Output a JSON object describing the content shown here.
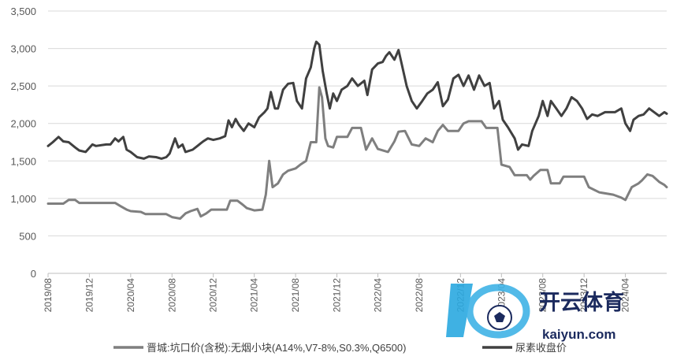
{
  "chart_data": {
    "type": "line",
    "ylim": [
      0,
      3500
    ],
    "yticks": [
      0,
      500,
      1000,
      1500,
      2000,
      2500,
      3000,
      3500
    ],
    "ytick_labels": [
      "0",
      "500",
      "1,000",
      "1,500",
      "2,000",
      "2,500",
      "3,000",
      "3,500"
    ],
    "x_range": [
      "2019-08-01",
      "2024-08-01"
    ],
    "xtick_labels": [
      "2019/08",
      "2019/12",
      "2020/04",
      "2020/08",
      "2020/12",
      "2021/04",
      "2021/08",
      "2021/12",
      "2022/04",
      "2022/08",
      "2022/12",
      "2023/04",
      "2023/08",
      "2023/12",
      "2024/04"
    ],
    "grid": "horizontal",
    "legend_position": "bottom",
    "series": [
      {
        "name": "晋城:坑口价(含税):无烟小块(A14%,V7-8%,S0.3%,Q6500)",
        "color": "#7f7f7f",
        "points": [
          [
            "2019-08-01",
            930
          ],
          [
            "2019-09-15",
            930
          ],
          [
            "2019-10-01",
            980
          ],
          [
            "2019-10-20",
            980
          ],
          [
            "2019-11-01",
            940
          ],
          [
            "2020-02-15",
            940
          ],
          [
            "2020-03-01",
            900
          ],
          [
            "2020-03-20",
            850
          ],
          [
            "2020-04-01",
            830
          ],
          [
            "2020-05-01",
            820
          ],
          [
            "2020-05-15",
            790
          ],
          [
            "2020-07-15",
            790
          ],
          [
            "2020-08-01",
            750
          ],
          [
            "2020-08-25",
            730
          ],
          [
            "2020-09-10",
            800
          ],
          [
            "2020-09-25",
            830
          ],
          [
            "2020-10-15",
            860
          ],
          [
            "2020-10-25",
            760
          ],
          [
            "2020-11-10",
            800
          ],
          [
            "2020-11-25",
            850
          ],
          [
            "2021-01-10",
            850
          ],
          [
            "2021-01-20",
            970
          ],
          [
            "2021-02-10",
            970
          ],
          [
            "2021-02-25",
            920
          ],
          [
            "2021-03-10",
            870
          ],
          [
            "2021-04-01",
            840
          ],
          [
            "2021-04-25",
            850
          ],
          [
            "2021-05-05",
            1050
          ],
          [
            "2021-05-15",
            1500
          ],
          [
            "2021-05-25",
            1150
          ],
          [
            "2021-06-10",
            1200
          ],
          [
            "2021-06-25",
            1320
          ],
          [
            "2021-07-10",
            1370
          ],
          [
            "2021-08-01",
            1400
          ],
          [
            "2021-08-15",
            1450
          ],
          [
            "2021-09-01",
            1500
          ],
          [
            "2021-09-15",
            1750
          ],
          [
            "2021-10-01",
            1750
          ],
          [
            "2021-10-10",
            2480
          ],
          [
            "2021-10-18",
            2350
          ],
          [
            "2021-10-28",
            1800
          ],
          [
            "2021-11-05",
            1700
          ],
          [
            "2021-11-20",
            1680
          ],
          [
            "2021-12-01",
            1820
          ],
          [
            "2022-01-01",
            1820
          ],
          [
            "2022-01-15",
            1940
          ],
          [
            "2022-02-10",
            1940
          ],
          [
            "2022-02-25",
            1650
          ],
          [
            "2022-03-15",
            1800
          ],
          [
            "2022-04-01",
            1660
          ],
          [
            "2022-05-01",
            1620
          ],
          [
            "2022-05-20",
            1760
          ],
          [
            "2022-06-01",
            1890
          ],
          [
            "2022-06-20",
            1900
          ],
          [
            "2022-07-10",
            1720
          ],
          [
            "2022-08-01",
            1700
          ],
          [
            "2022-08-20",
            1800
          ],
          [
            "2022-09-10",
            1750
          ],
          [
            "2022-09-25",
            1900
          ],
          [
            "2022-10-10",
            1980
          ],
          [
            "2022-10-25",
            1900
          ],
          [
            "2022-11-25",
            1900
          ],
          [
            "2022-12-10",
            2000
          ],
          [
            "2022-12-25",
            2030
          ],
          [
            "2023-02-01",
            2030
          ],
          [
            "2023-02-15",
            1940
          ],
          [
            "2023-03-20",
            1940
          ],
          [
            "2023-04-01",
            1450
          ],
          [
            "2023-04-25",
            1420
          ],
          [
            "2023-05-10",
            1310
          ],
          [
            "2023-06-15",
            1310
          ],
          [
            "2023-06-25",
            1250
          ],
          [
            "2023-07-05",
            1300
          ],
          [
            "2023-07-25",
            1380
          ],
          [
            "2023-08-15",
            1380
          ],
          [
            "2023-08-25",
            1200
          ],
          [
            "2023-09-20",
            1200
          ],
          [
            "2023-10-01",
            1290
          ],
          [
            "2023-12-01",
            1290
          ],
          [
            "2023-12-15",
            1150
          ],
          [
            "2024-01-15",
            1080
          ],
          [
            "2024-02-25",
            1050
          ],
          [
            "2024-03-20",
            1010
          ],
          [
            "2024-04-01",
            980
          ],
          [
            "2024-04-20",
            1150
          ],
          [
            "2024-05-10",
            1200
          ],
          [
            "2024-05-20",
            1240
          ],
          [
            "2024-06-05",
            1320
          ],
          [
            "2024-06-20",
            1300
          ],
          [
            "2024-07-10",
            1220
          ],
          [
            "2024-07-25",
            1180
          ],
          [
            "2024-08-01",
            1150
          ]
        ]
      },
      {
        "name": "尿素收盘价",
        "color": "#404040",
        "points": [
          [
            "2019-08-01",
            1700
          ],
          [
            "2019-08-15",
            1750
          ],
          [
            "2019-09-01",
            1820
          ],
          [
            "2019-09-15",
            1760
          ],
          [
            "2019-10-01",
            1750
          ],
          [
            "2019-10-20",
            1680
          ],
          [
            "2019-11-01",
            1640
          ],
          [
            "2019-11-20",
            1620
          ],
          [
            "2019-12-10",
            1720
          ],
          [
            "2019-12-20",
            1700
          ],
          [
            "2020-01-20",
            1720
          ],
          [
            "2020-02-01",
            1720
          ],
          [
            "2020-02-15",
            1800
          ],
          [
            "2020-02-25",
            1760
          ],
          [
            "2020-03-10",
            1820
          ],
          [
            "2020-03-20",
            1650
          ],
          [
            "2020-04-01",
            1620
          ],
          [
            "2020-04-20",
            1550
          ],
          [
            "2020-05-10",
            1530
          ],
          [
            "2020-05-25",
            1560
          ],
          [
            "2020-06-15",
            1550
          ],
          [
            "2020-07-01",
            1530
          ],
          [
            "2020-07-15",
            1550
          ],
          [
            "2020-07-25",
            1600
          ],
          [
            "2020-08-10",
            1800
          ],
          [
            "2020-08-20",
            1680
          ],
          [
            "2020-09-01",
            1720
          ],
          [
            "2020-09-10",
            1620
          ],
          [
            "2020-10-01",
            1650
          ],
          [
            "2020-10-15",
            1700
          ],
          [
            "2020-11-01",
            1760
          ],
          [
            "2020-11-15",
            1800
          ],
          [
            "2020-12-01",
            1780
          ],
          [
            "2020-12-20",
            1800
          ],
          [
            "2021-01-05",
            1830
          ],
          [
            "2021-01-15",
            2040
          ],
          [
            "2021-01-25",
            1950
          ],
          [
            "2021-02-05",
            2060
          ],
          [
            "2021-02-15",
            1980
          ],
          [
            "2021-03-01",
            1900
          ],
          [
            "2021-03-15",
            2000
          ],
          [
            "2021-04-01",
            1950
          ],
          [
            "2021-04-15",
            2080
          ],
          [
            "2021-05-01",
            2150
          ],
          [
            "2021-05-10",
            2200
          ],
          [
            "2021-05-20",
            2420
          ],
          [
            "2021-06-01",
            2200
          ],
          [
            "2021-06-10",
            2200
          ],
          [
            "2021-06-25",
            2450
          ],
          [
            "2021-07-10",
            2530
          ],
          [
            "2021-07-25",
            2540
          ],
          [
            "2021-08-05",
            2300
          ],
          [
            "2021-08-20",
            2200
          ],
          [
            "2021-09-01",
            2600
          ],
          [
            "2021-09-15",
            2750
          ],
          [
            "2021-09-25",
            3000
          ],
          [
            "2021-10-01",
            3090
          ],
          [
            "2021-10-10",
            3050
          ],
          [
            "2021-10-20",
            2700
          ],
          [
            "2021-11-01",
            2400
          ],
          [
            "2021-11-10",
            2200
          ],
          [
            "2021-11-20",
            2400
          ],
          [
            "2021-12-01",
            2300
          ],
          [
            "2021-12-15",
            2450
          ],
          [
            "2022-01-01",
            2500
          ],
          [
            "2022-01-15",
            2600
          ],
          [
            "2022-02-01",
            2500
          ],
          [
            "2022-02-20",
            2570
          ],
          [
            "2022-03-01",
            2380
          ],
          [
            "2022-03-15",
            2720
          ],
          [
            "2022-04-01",
            2800
          ],
          [
            "2022-04-15",
            2820
          ],
          [
            "2022-04-25",
            2900
          ],
          [
            "2022-05-05",
            2950
          ],
          [
            "2022-05-20",
            2850
          ],
          [
            "2022-06-01",
            2980
          ],
          [
            "2022-06-10",
            2800
          ],
          [
            "2022-06-25",
            2500
          ],
          [
            "2022-07-10",
            2300
          ],
          [
            "2022-07-25",
            2200
          ],
          [
            "2022-08-10",
            2300
          ],
          [
            "2022-08-25",
            2400
          ],
          [
            "2022-09-10",
            2450
          ],
          [
            "2022-09-25",
            2550
          ],
          [
            "2022-10-10",
            2230
          ],
          [
            "2022-10-25",
            2320
          ],
          [
            "2022-11-10",
            2600
          ],
          [
            "2022-11-25",
            2650
          ],
          [
            "2022-12-10",
            2500
          ],
          [
            "2022-12-25",
            2640
          ],
          [
            "2023-01-10",
            2450
          ],
          [
            "2023-01-25",
            2640
          ],
          [
            "2023-02-10",
            2500
          ],
          [
            "2023-02-25",
            2540
          ],
          [
            "2023-03-10",
            2200
          ],
          [
            "2023-03-25",
            2300
          ],
          [
            "2023-04-05",
            2050
          ],
          [
            "2023-04-20",
            1950
          ],
          [
            "2023-05-10",
            1800
          ],
          [
            "2023-05-20",
            1650
          ],
          [
            "2023-06-01",
            1720
          ],
          [
            "2023-06-20",
            1700
          ],
          [
            "2023-07-01",
            1900
          ],
          [
            "2023-07-20",
            2100
          ],
          [
            "2023-08-01",
            2300
          ],
          [
            "2023-08-15",
            2100
          ],
          [
            "2023-08-25",
            2300
          ],
          [
            "2023-09-10",
            2200
          ],
          [
            "2023-09-25",
            2100
          ],
          [
            "2023-10-10",
            2200
          ],
          [
            "2023-10-25",
            2350
          ],
          [
            "2023-11-10",
            2300
          ],
          [
            "2023-11-25",
            2200
          ],
          [
            "2023-12-10",
            2060
          ],
          [
            "2023-12-25",
            2120
          ],
          [
            "2024-01-10",
            2100
          ],
          [
            "2024-02-01",
            2150
          ],
          [
            "2024-03-01",
            2150
          ],
          [
            "2024-03-20",
            2200
          ],
          [
            "2024-04-01",
            2000
          ],
          [
            "2024-04-15",
            1900
          ],
          [
            "2024-04-25",
            2050
          ],
          [
            "2024-05-10",
            2100
          ],
          [
            "2024-05-25",
            2120
          ],
          [
            "2024-06-10",
            2200
          ],
          [
            "2024-06-25",
            2150
          ],
          [
            "2024-07-10",
            2100
          ],
          [
            "2024-07-25",
            2150
          ],
          [
            "2024-08-01",
            2130
          ]
        ]
      }
    ]
  },
  "watermark": {
    "brand_cn": "开云体育",
    "brand_en": "kaiyun.com"
  }
}
